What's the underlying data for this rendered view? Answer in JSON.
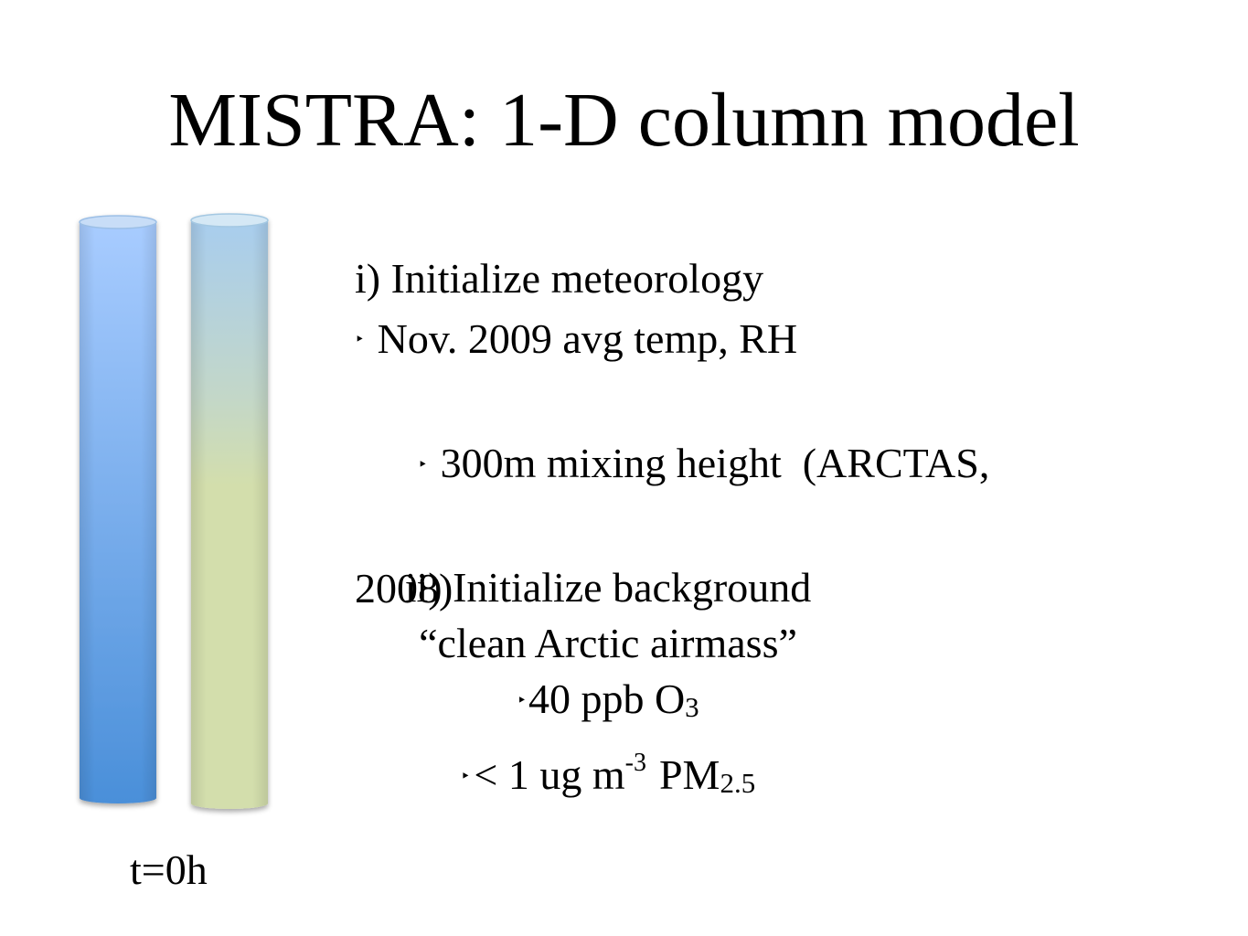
{
  "slide": {
    "title": "MISTRA: 1-D column model",
    "time_label": "t=0h"
  },
  "diagram": {
    "columns": [
      {
        "name": "meteorology-column",
        "fill_top": "#a8ccff",
        "fill_bottom": "#4a8fd9",
        "rim": "#c8ddf7"
      },
      {
        "name": "background-column",
        "fill_top": "#a8cdee",
        "fill_bottom": "#d3deac",
        "rim": "#d5e8f5"
      }
    ],
    "bullet_glyph": "‣"
  },
  "step1": {
    "heading": "i) Initialize meteorology",
    "bullets": [
      "Nov. 2009 avg temp, RH",
      "300m mixing height  (ARCTAS,"
    ],
    "continuation": "2008)"
  },
  "step2": {
    "heading": "ii) Initialize background",
    "quote": "“clean Arctic airmass”",
    "ozone": {
      "text": "40 ppb O",
      "subscript": "3"
    },
    "pm": {
      "text": "< 1 ug m",
      "superscript": "-3",
      "tail": "PM",
      "subscript": "2.5"
    }
  }
}
